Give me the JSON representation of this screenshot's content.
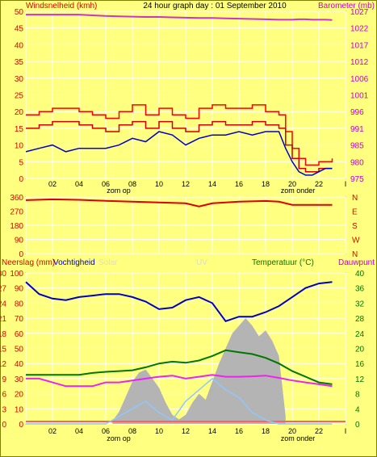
{
  "colors": {
    "background": "#ffff80",
    "frame": "#808000",
    "wind": "#cc0000",
    "gust": "#ff0000",
    "wind_avg": "#0000cc",
    "barometer": "#cc33cc",
    "direction": "#dd0000",
    "rain": "#b4b4b4",
    "humidity": "#0000cc",
    "temperature": "#007700",
    "dewpoint": "#ee22ee",
    "solar": "#8ec8ff",
    "uv": "#ffaaaa",
    "label_red": "#dd0000",
    "label_green": "#007700",
    "label_magenta": "#cc00cc",
    "label_faint": "#dcdcdc",
    "zero_line": "#ff6060",
    "grid": "#ffffff"
  },
  "hour_labels": [
    "02",
    "04",
    "06",
    "08",
    "10",
    "12",
    "14",
    "16",
    "18",
    "20",
    "22",
    "I"
  ],
  "zon_op": "zom op",
  "zon_onder": "zom onder",
  "chart_data": [
    {
      "type": "line",
      "title": "24 hour graph day : 01 September 2010",
      "ylabel": "Windsnelheid (kmh)",
      "y2label": "Barometer (mb)",
      "ylim": [
        0,
        50
      ],
      "y_ticks": [
        "0",
        "5",
        "10",
        "15",
        "20",
        "25",
        "30",
        "35",
        "40",
        "45",
        "50"
      ],
      "y2lim": [
        975,
        1025
      ],
      "y2_ticks": [
        "975",
        "980",
        "985",
        "991",
        "996",
        "1001",
        "1006",
        "1012",
        "1017",
        "1022",
        "1027"
      ],
      "x": [
        0,
        1,
        2,
        3,
        4,
        5,
        6,
        7,
        8,
        9,
        10,
        11,
        12,
        13,
        14,
        15,
        16,
        17,
        18,
        19,
        19.5,
        20,
        20.5,
        21,
        21.5,
        22,
        22.5,
        23
      ],
      "series": [
        {
          "name": "Windsnelheid (kmh)",
          "values": [
            15,
            16,
            17,
            17,
            16,
            15,
            14,
            16,
            17,
            15,
            17,
            15,
            14,
            16,
            17,
            16,
            16,
            17,
            16,
            15,
            10,
            6,
            3,
            2,
            2,
            3,
            3,
            3
          ]
        },
        {
          "name": "Windstoot (kmh)",
          "values": [
            19,
            20,
            21,
            21,
            20,
            19,
            18,
            20,
            22,
            19,
            21,
            19,
            18,
            21,
            22,
            21,
            21,
            22,
            20,
            19,
            14,
            9,
            6,
            4,
            4,
            5,
            5,
            6
          ]
        },
        {
          "name": "Gemiddeld (kmh)",
          "values": [
            8,
            9,
            10,
            8,
            9,
            9,
            9,
            10,
            12,
            11,
            14,
            13,
            10,
            12,
            13,
            13,
            14,
            13,
            14,
            14,
            9,
            5,
            2,
            1,
            1,
            2,
            3,
            3
          ]
        },
        {
          "name": "Barometer (mb)",
          "values": [
            1024,
            1024,
            1024,
            1024,
            1024,
            1023.8,
            1023.6,
            1023.5,
            1023.4,
            1023.3,
            1023.3,
            1023.2,
            1023.1,
            1023,
            1023,
            1022.9,
            1022.8,
            1022.7,
            1022.6,
            1022.5,
            1022.5,
            1022.5,
            1022.6,
            1022.6,
            1022.5,
            1022.5,
            1022.5,
            1022.4
          ]
        }
      ]
    },
    {
      "type": "line",
      "ylim": [
        0,
        360
      ],
      "y_ticks": [
        "0",
        "90",
        "180",
        "270",
        "360"
      ],
      "y2_ticks": [
        "N",
        "W",
        "S",
        "E",
        "N"
      ],
      "x": [
        0,
        2,
        4,
        6,
        8,
        10,
        12,
        13,
        14,
        16,
        18,
        19,
        20,
        22,
        23
      ],
      "series": [
        {
          "name": "Windrichting",
          "values": [
            340,
            345,
            342,
            336,
            330,
            325,
            320,
            300,
            320,
            330,
            335,
            330,
            310,
            310,
            310
          ]
        }
      ]
    },
    {
      "type": "line",
      "ylabel": "Neerslag (mm) / Vochtigheid",
      "y1_ticks": [
        "0",
        "3",
        "6",
        "9",
        "12",
        "15",
        "18",
        "21",
        "24",
        "27",
        "30"
      ],
      "y2_ticks": [
        "0",
        "10",
        "20",
        "30",
        "40",
        "50",
        "60",
        "70",
        "80",
        "90",
        "100"
      ],
      "y3_ticks": [
        "0",
        "4",
        "8",
        "12",
        "16",
        "20",
        "24",
        "28",
        "32",
        "36",
        "40"
      ],
      "ylim": [
        0,
        100
      ],
      "y3lim": [
        0,
        40
      ],
      "legend": [
        "Neerslag (mm)",
        "Vochtigheid",
        "Solar",
        "UV",
        "Temperatuur (°C)",
        "Dauwpunt"
      ],
      "x": [
        0,
        1,
        2,
        3,
        4,
        5,
        6,
        7,
        8,
        9,
        10,
        11,
        12,
        13,
        14,
        15,
        16,
        17,
        18,
        19,
        20,
        21,
        22,
        23
      ],
      "series": [
        {
          "name": "Vochtigheid",
          "values": [
            94,
            86,
            83,
            82,
            84,
            85,
            86,
            86,
            84,
            81,
            76,
            77,
            82,
            84,
            80,
            68,
            71,
            71,
            74,
            78,
            84,
            90,
            93,
            94
          ]
        },
        {
          "name": "Temperatuur (°C)",
          "values": [
            13,
            13,
            13,
            13,
            13,
            13.5,
            13.8,
            14,
            14.2,
            15,
            16,
            16.5,
            16.2,
            16.8,
            18,
            19.5,
            19,
            18.5,
            17.5,
            16,
            14,
            12.5,
            11,
            10.5
          ]
        },
        {
          "name": "Dauwpunt",
          "values": [
            12,
            12,
            11,
            10,
            10,
            10,
            11,
            11,
            11.5,
            12,
            12.5,
            12.8,
            12,
            12.5,
            13,
            12.5,
            12.5,
            12.6,
            12.8,
            12.2,
            11.5,
            11,
            10.5,
            10
          ]
        },
        {
          "name": "Solar",
          "values": [
            0,
            0,
            0,
            0,
            0,
            0,
            0,
            2,
            4,
            6,
            3,
            1,
            6,
            9,
            12,
            9,
            7,
            3,
            1,
            0,
            0,
            0,
            0,
            0
          ]
        },
        {
          "name": "Neerslag (mm)",
          "values": [
            0,
            0,
            0,
            0,
            0,
            0,
            0,
            0,
            0,
            0,
            0,
            0,
            0,
            0,
            0,
            0,
            0,
            0,
            0,
            0,
            0,
            0,
            0,
            0
          ]
        }
      ],
      "bars": {
        "name": "Solar",
        "x": [
          6.5,
          7,
          7.5,
          8,
          8.5,
          9,
          9.5,
          10,
          10.5,
          11,
          11.5,
          12,
          12.5,
          13,
          13.5,
          14,
          14.5,
          15,
          15.5,
          16,
          16.5,
          17,
          17.5,
          18,
          18.5,
          19,
          19.5
        ],
        "values": [
          2,
          8,
          18,
          28,
          34,
          36,
          30,
          24,
          14,
          6,
          3,
          6,
          14,
          20,
          16,
          28,
          40,
          50,
          60,
          65,
          70,
          65,
          58,
          62,
          55,
          45,
          5
        ]
      }
    }
  ]
}
